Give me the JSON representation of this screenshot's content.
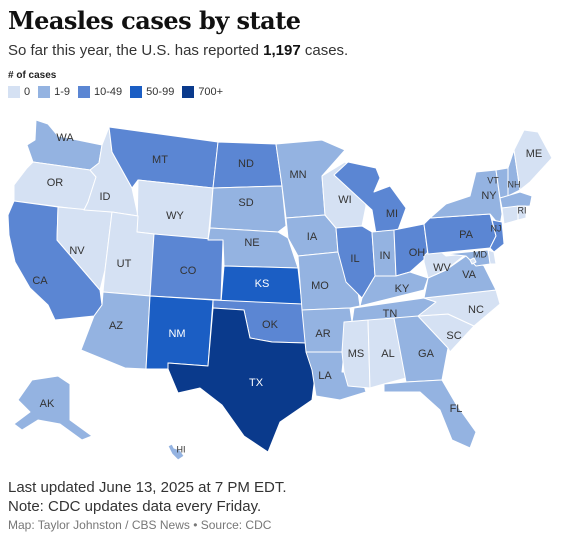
{
  "header": {
    "title": "Measles cases by state",
    "subtitle_prefix": "So far this year, the U.S. has reported ",
    "subtitle_count": "1,197",
    "subtitle_suffix": " cases."
  },
  "legend": {
    "title": "# of cases",
    "bins": [
      {
        "label": "0",
        "color": "#d5e1f3"
      },
      {
        "label": "1-9",
        "color": "#94b3e1"
      },
      {
        "label": "10-49",
        "color": "#5b86d3"
      },
      {
        "label": "50-99",
        "color": "#1b5ec4"
      },
      {
        "label": "700+",
        "color": "#0a3a8c"
      }
    ]
  },
  "states": {
    "WA": {
      "bin": "1-9"
    },
    "OR": {
      "bin": "0"
    },
    "ID": {
      "bin": "0"
    },
    "MT": {
      "bin": "10-49"
    },
    "WY": {
      "bin": "0"
    },
    "ND": {
      "bin": "10-49"
    },
    "SD": {
      "bin": "1-9"
    },
    "NE": {
      "bin": "1-9"
    },
    "MN": {
      "bin": "1-9"
    },
    "WI": {
      "bin": "0"
    },
    "IA": {
      "bin": "1-9"
    },
    "IL": {
      "bin": "10-49"
    },
    "MI": {
      "bin": "10-49"
    },
    "IN": {
      "bin": "1-9"
    },
    "OH": {
      "bin": "10-49"
    },
    "PA": {
      "bin": "10-49"
    },
    "NY": {
      "bin": "1-9"
    },
    "VT": {
      "bin": "1-9"
    },
    "NH": {
      "bin": "1-9"
    },
    "ME": {
      "bin": "0"
    },
    "MA": {
      "bin": "1-9"
    },
    "RI": {
      "bin": "0"
    },
    "CT": {
      "bin": "0"
    },
    "NJ": {
      "bin": "10-49"
    },
    "DE": {
      "bin": "0"
    },
    "MD": {
      "bin": "1-9"
    },
    "DC": {
      "bin": "0"
    },
    "WV": {
      "bin": "0"
    },
    "VA": {
      "bin": "1-9"
    },
    "KY": {
      "bin": "1-9"
    },
    "TN": {
      "bin": "1-9"
    },
    "NC": {
      "bin": "0"
    },
    "SC": {
      "bin": "0"
    },
    "GA": {
      "bin": "1-9"
    },
    "FL": {
      "bin": "1-9"
    },
    "AL": {
      "bin": "0"
    },
    "MS": {
      "bin": "0"
    },
    "LA": {
      "bin": "1-9"
    },
    "AR": {
      "bin": "1-9"
    },
    "MO": {
      "bin": "1-9"
    },
    "KS": {
      "bin": "50-99"
    },
    "OK": {
      "bin": "10-49"
    },
    "TX": {
      "bin": "700+"
    },
    "NM": {
      "bin": "50-99"
    },
    "CO": {
      "bin": "10-49"
    },
    "UT": {
      "bin": "0"
    },
    "AZ": {
      "bin": "1-9"
    },
    "NV": {
      "bin": "0"
    },
    "CA": {
      "bin": "10-49"
    },
    "AK": {
      "bin": "1-9"
    },
    "HI": {
      "bin": "1-9"
    }
  },
  "footer": {
    "updated": "Last updated June 13, 2025 at 7 PM EDT.",
    "note": "Note: CDC updates data every Friday.",
    "credit": "Map: Taylor Johnston / CBS News • Source: CDC"
  }
}
